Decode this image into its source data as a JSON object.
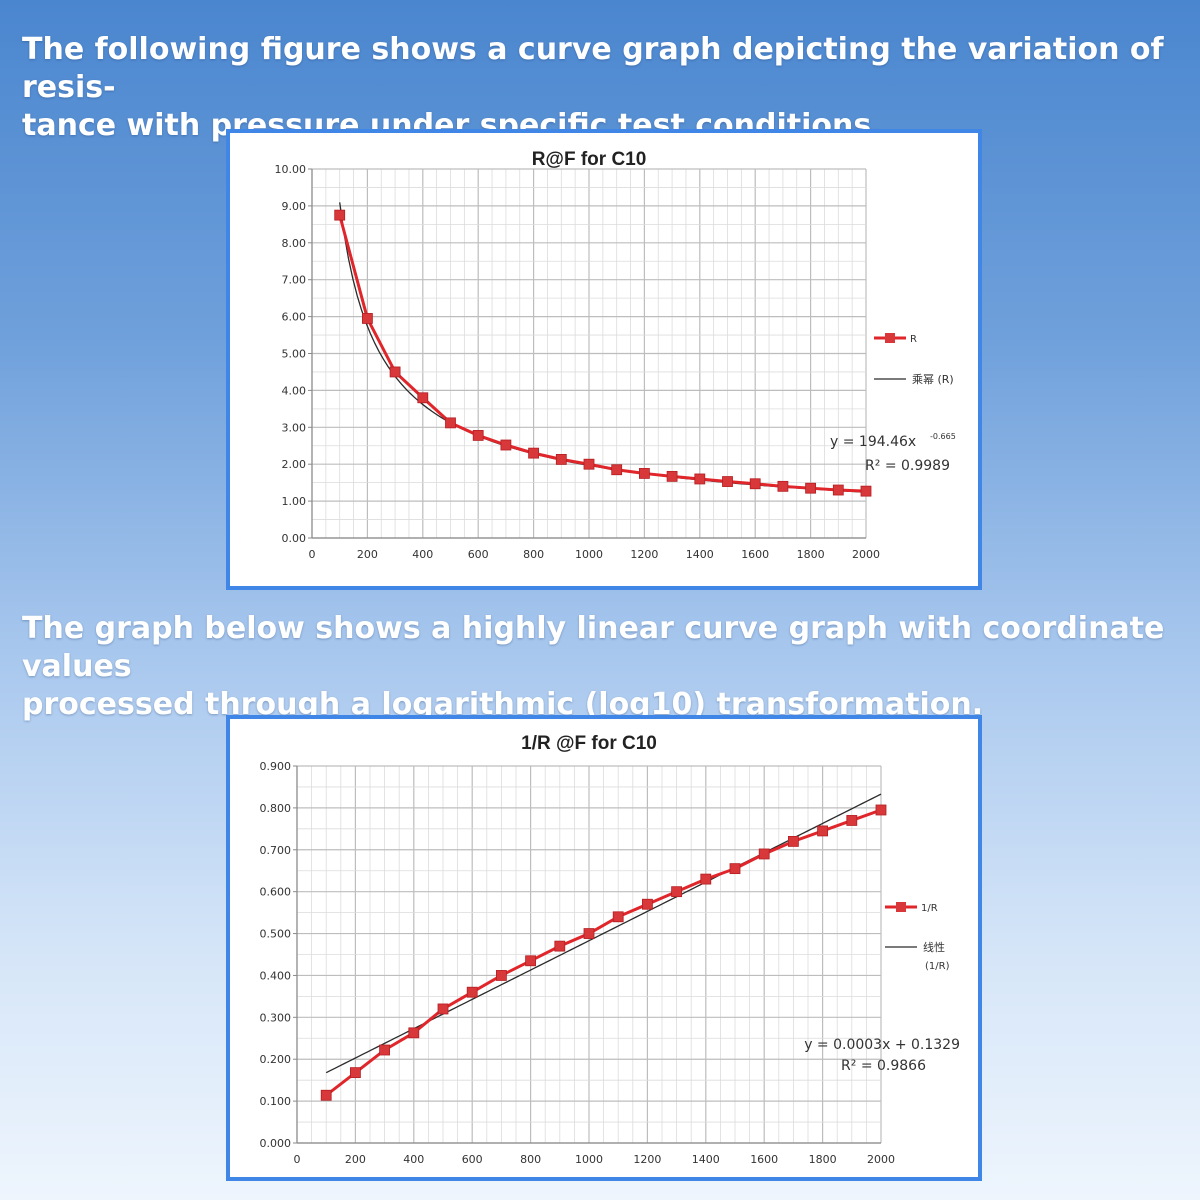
{
  "captions": {
    "top": [
      "The following figure shows a curve graph depicting the variation of resis-",
      "tance with pressure under specific test conditions."
    ],
    "bottom": [
      "The graph below shows a highly linear curve graph with coordinate values",
      "processed through a logarithmic (log10) transformation."
    ]
  },
  "colors": {
    "series": "#e0262b",
    "marker": "#d8383a",
    "trend": "#2b2b2b",
    "grid": "#c8c8c8",
    "frame_border": "#3f86e6"
  },
  "chart_data": [
    {
      "type": "line",
      "title": "R@F  for C10",
      "xlabel": "",
      "ylabel": "",
      "xlim": [
        0,
        2000
      ],
      "ylim": [
        0,
        10
      ],
      "x_ticks": [
        0,
        200,
        400,
        600,
        800,
        1000,
        1200,
        1400,
        1600,
        1800,
        2000
      ],
      "y_ticks": [
        "0.00",
        "1.00",
        "2.00",
        "3.00",
        "4.00",
        "5.00",
        "6.00",
        "7.00",
        "8.00",
        "9.00",
        "10.00"
      ],
      "series": [
        {
          "name": "R",
          "x": [
            100,
            200,
            300,
            400,
            500,
            600,
            700,
            800,
            900,
            1000,
            1100,
            1200,
            1300,
            1400,
            1500,
            1600,
            1700,
            1800,
            1900,
            2000
          ],
          "values": [
            8.75,
            5.95,
            4.5,
            3.8,
            3.12,
            2.78,
            2.52,
            2.3,
            2.13,
            2.0,
            1.85,
            1.75,
            1.67,
            1.6,
            1.53,
            1.47,
            1.4,
            1.35,
            1.3,
            1.27
          ]
        }
      ],
      "trendline": {
        "name": "乘幂 (R)",
        "kind": "power",
        "a": 194.46,
        "b": -0.665,
        "x_range": [
          100,
          2000
        ],
        "equation_text": "y = 194.46x",
        "equation_exponent": "-0.665",
        "r2_text": "R² = 0.9989"
      },
      "legend": {
        "placement": "right",
        "entries": [
          "R",
          "乘幂 (R)"
        ]
      }
    },
    {
      "type": "line",
      "title": "1/R @F for C10",
      "xlabel": "",
      "ylabel": "",
      "xlim": [
        0,
        2000
      ],
      "ylim": [
        0,
        0.9
      ],
      "x_ticks": [
        0,
        200,
        400,
        600,
        800,
        1000,
        1200,
        1400,
        1600,
        1800,
        2000
      ],
      "y_ticks": [
        "0.000",
        "0.100",
        "0.200",
        "0.300",
        "0.400",
        "0.500",
        "0.600",
        "0.700",
        "0.800",
        "0.900"
      ],
      "series": [
        {
          "name": "1/R",
          "x": [
            100,
            200,
            300,
            400,
            500,
            600,
            700,
            800,
            900,
            1000,
            1100,
            1200,
            1300,
            1400,
            1500,
            1600,
            1700,
            1800,
            1900,
            2000
          ],
          "values": [
            0.114,
            0.168,
            0.222,
            0.263,
            0.32,
            0.36,
            0.4,
            0.435,
            0.47,
            0.5,
            0.54,
            0.57,
            0.6,
            0.63,
            0.655,
            0.69,
            0.72,
            0.745,
            0.77,
            0.795
          ]
        }
      ],
      "trendline": {
        "name": "线性 (1/R)",
        "kind": "linear",
        "m": 0.00035,
        "c": 0.1329,
        "x_range": [
          100,
          2000
        ],
        "equation_text": "y = 0.0003x + 0.1329",
        "r2_text": "R² = 0.9866"
      },
      "legend": {
        "placement": "right",
        "entries": [
          "1/R",
          "线性",
          "(1/R)"
        ]
      }
    }
  ]
}
